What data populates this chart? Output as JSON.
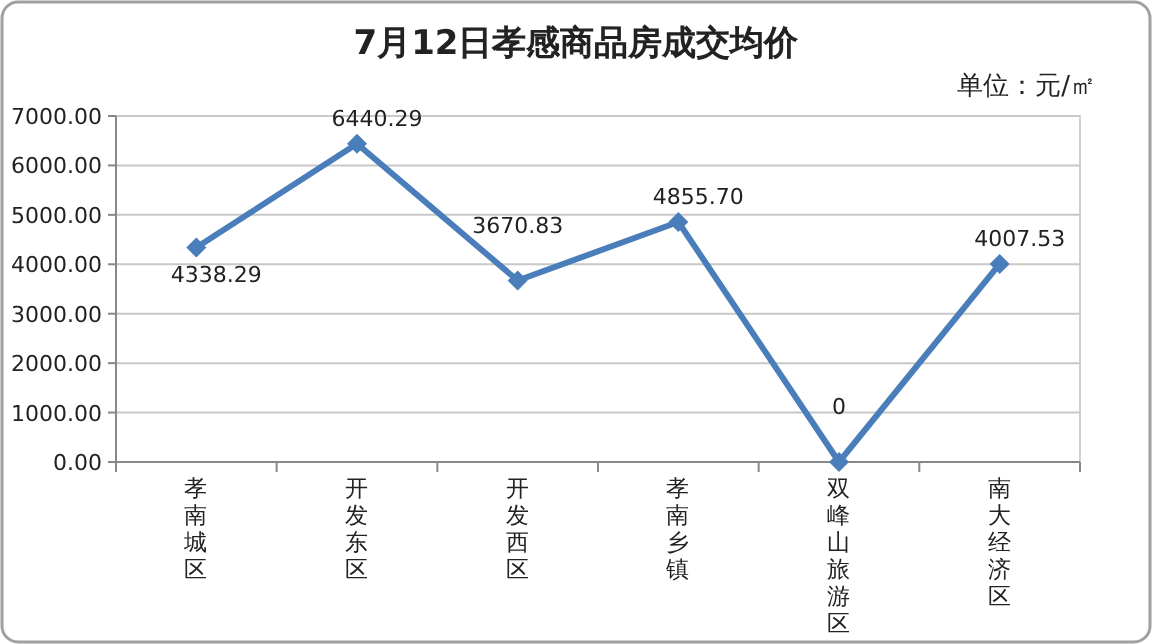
{
  "chart_data": {
    "type": "line",
    "title": "7月12日孝感商品房成交均价",
    "annotations": [
      "单位：元/㎡"
    ],
    "categories": [
      "孝南城区",
      "开发东区",
      "开发西区",
      "孝南乡镇",
      "双峰山旅游区",
      "南大经济区"
    ],
    "series": [
      {
        "color": "#4a7ebb",
        "values": [
          4338.29,
          6440.29,
          3670.83,
          4855.7,
          0,
          4007.53
        ],
        "value_labels": [
          "4338.29",
          "6440.29",
          "3670.83",
          "4855.70",
          "0",
          "4007.53"
        ]
      }
    ],
    "ylim": [
      0,
      7000
    ],
    "yticks": [
      {
        "value": 0,
        "label": "0.00"
      },
      {
        "value": 1000,
        "label": "1000.00"
      },
      {
        "value": 2000,
        "label": "2000.00"
      },
      {
        "value": 3000,
        "label": "3000.00"
      },
      {
        "value": 4000,
        "label": "4000.00"
      },
      {
        "value": 5000,
        "label": "5000.00"
      },
      {
        "value": 6000,
        "label": "6000.00"
      },
      {
        "value": 7000,
        "label": "7000.00"
      }
    ],
    "grid": "y",
    "marker": "diamond",
    "line_style": "solid"
  }
}
